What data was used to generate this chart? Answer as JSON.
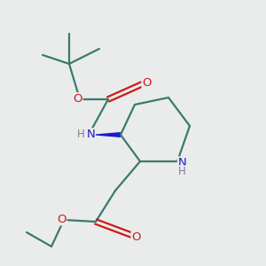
{
  "bg_color": "#eaecec",
  "atom_colors": {
    "C": "#3a7a6a",
    "N": "#1a1acc",
    "O": "#cc1a1a",
    "H": "#7a8090"
  },
  "bond_color": "#3a7a6a",
  "line_width": 1.6,
  "figsize": [
    3.0,
    3.0
  ],
  "dpi": 100,
  "xlim": [
    0,
    10
  ],
  "ylim": [
    0,
    10
  ]
}
